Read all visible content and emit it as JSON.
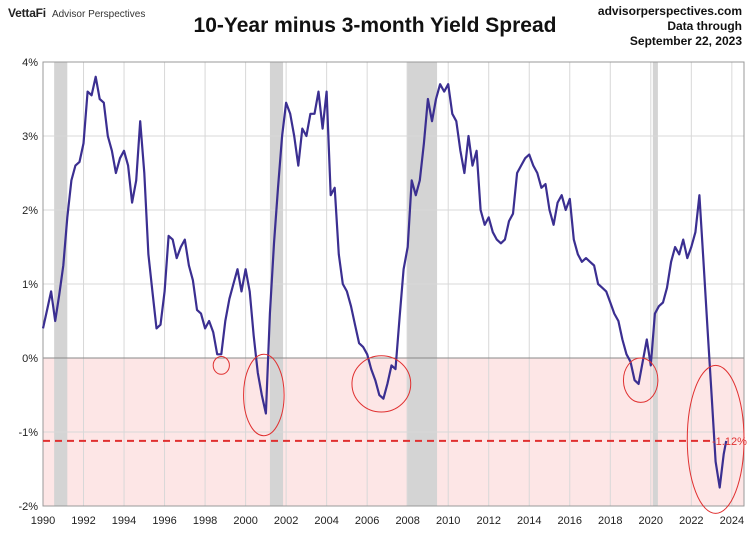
{
  "header": {
    "brand": "VettaFi",
    "brand_sub": "Advisor Perspectives",
    "source_lines": [
      "advisorperspectives.com",
      "Data through",
      "September 22, 2023"
    ]
  },
  "colors": {
    "line": "#3b2f91",
    "recession": "#d4d4d4",
    "negative_zone": "#fde6e6",
    "annotation": "#e03030",
    "grid": "#d8d8d8"
  },
  "chart_data": {
    "type": "line",
    "title": "10-Year minus 3-month Yield Spread",
    "xlim": [
      1990,
      2024.6
    ],
    "ylim": [
      -2,
      4
    ],
    "x_ticks": [
      1990,
      1992,
      1994,
      1996,
      1998,
      2000,
      2002,
      2004,
      2006,
      2008,
      2010,
      2012,
      2014,
      2016,
      2018,
      2020,
      2022,
      2024
    ],
    "y_ticks": [
      {
        "value": 4,
        "label": "4%"
      },
      {
        "value": 3,
        "label": "3%"
      },
      {
        "value": 2,
        "label": "2%"
      },
      {
        "value": 1,
        "label": "1%"
      },
      {
        "value": 0,
        "label": "0%"
      },
      {
        "value": -1,
        "label": "-1%"
      },
      {
        "value": -2,
        "label": "-2%"
      }
    ],
    "recessions": [
      [
        1990.55,
        1991.2
      ],
      [
        2001.2,
        2001.85
      ],
      [
        2007.95,
        2009.45
      ],
      [
        2020.1,
        2020.35
      ]
    ],
    "reference_line": {
      "value": -1.12,
      "label": "-1.12%"
    },
    "inversion_circles": [
      {
        "x": 1998.8,
        "y": -0.1,
        "rx": 0.4,
        "ry": 0.12
      },
      {
        "x": 2000.9,
        "y": -0.5,
        "rx": 1.0,
        "ry": 0.55
      },
      {
        "x": 2006.7,
        "y": -0.35,
        "rx": 1.45,
        "ry": 0.38
      },
      {
        "x": 2019.5,
        "y": -0.3,
        "rx": 0.85,
        "ry": 0.3
      },
      {
        "x": 2023.2,
        "y": -1.1,
        "rx": 1.4,
        "ry": 1.0
      }
    ],
    "series": [
      {
        "x": [
          1990.0,
          1990.2,
          1990.4,
          1990.6,
          1990.8,
          1991.0,
          1991.2,
          1991.4,
          1991.6,
          1991.8,
          1992.0,
          1992.2,
          1992.4,
          1992.6,
          1992.8,
          1993.0,
          1993.2,
          1993.4,
          1993.6,
          1993.8,
          1994.0,
          1994.2,
          1994.4,
          1994.6,
          1994.8,
          1995.0,
          1995.2,
          1995.4,
          1995.6,
          1995.8,
          1996.0,
          1996.2,
          1996.4,
          1996.6,
          1996.8,
          1997.0,
          1997.2,
          1997.4,
          1997.6,
          1997.8,
          1998.0,
          1998.2,
          1998.4,
          1998.6,
          1998.8,
          1999.0,
          1999.2,
          1999.4,
          1999.6,
          1999.8,
          2000.0,
          2000.2,
          2000.4,
          2000.6,
          2000.8,
          2001.0,
          2001.2,
          2001.4,
          2001.6,
          2001.8,
          2002.0,
          2002.2,
          2002.4,
          2002.6,
          2002.8,
          2003.0,
          2003.2,
          2003.4,
          2003.6,
          2003.8,
          2004.0,
          2004.2,
          2004.4,
          2004.6,
          2004.8,
          2005.0,
          2005.2,
          2005.4,
          2005.6,
          2005.8,
          2006.0,
          2006.2,
          2006.4,
          2006.6,
          2006.8,
          2007.0,
          2007.2,
          2007.4,
          2007.6,
          2007.8,
          2008.0,
          2008.2,
          2008.4,
          2008.6,
          2008.8,
          2009.0,
          2009.2,
          2009.4,
          2009.6,
          2009.8,
          2010.0,
          2010.2,
          2010.4,
          2010.6,
          2010.8,
          2011.0,
          2011.2,
          2011.4,
          2011.6,
          2011.8,
          2012.0,
          2012.2,
          2012.4,
          2012.6,
          2012.8,
          2013.0,
          2013.2,
          2013.4,
          2013.6,
          2013.8,
          2014.0,
          2014.2,
          2014.4,
          2014.6,
          2014.8,
          2015.0,
          2015.2,
          2015.4,
          2015.6,
          2015.8,
          2016.0,
          2016.2,
          2016.4,
          2016.6,
          2016.8,
          2017.0,
          2017.2,
          2017.4,
          2017.6,
          2017.8,
          2018.0,
          2018.2,
          2018.4,
          2018.6,
          2018.8,
          2019.0,
          2019.2,
          2019.4,
          2019.6,
          2019.8,
          2020.0,
          2020.2,
          2020.4,
          2020.6,
          2020.8,
          2021.0,
          2021.2,
          2021.4,
          2021.6,
          2021.8,
          2022.0,
          2022.2,
          2022.4,
          2022.6,
          2022.8,
          2023.0,
          2023.2,
          2023.4,
          2023.6,
          2023.72
        ],
        "y": [
          0.4,
          0.65,
          0.9,
          0.5,
          0.85,
          1.25,
          1.9,
          2.4,
          2.6,
          2.65,
          2.9,
          3.6,
          3.55,
          3.8,
          3.5,
          3.45,
          3.0,
          2.8,
          2.5,
          2.7,
          2.8,
          2.6,
          2.1,
          2.4,
          3.2,
          2.5,
          1.4,
          0.9,
          0.4,
          0.45,
          0.9,
          1.65,
          1.6,
          1.35,
          1.5,
          1.6,
          1.25,
          1.05,
          0.65,
          0.6,
          0.4,
          0.5,
          0.35,
          0.05,
          0.05,
          0.5,
          0.8,
          1.0,
          1.2,
          0.9,
          1.2,
          0.9,
          0.3,
          -0.2,
          -0.5,
          -0.75,
          0.6,
          1.55,
          2.3,
          3.0,
          3.45,
          3.3,
          3.0,
          2.6,
          3.1,
          3.0,
          3.3,
          3.3,
          3.6,
          3.1,
          3.6,
          2.2,
          2.3,
          1.4,
          1.0,
          0.9,
          0.7,
          0.45,
          0.2,
          0.15,
          0.05,
          -0.15,
          -0.3,
          -0.5,
          -0.55,
          -0.35,
          -0.1,
          -0.15,
          0.55,
          1.2,
          1.5,
          2.4,
          2.2,
          2.4,
          2.9,
          3.5,
          3.2,
          3.5,
          3.7,
          3.6,
          3.7,
          3.3,
          3.2,
          2.8,
          2.5,
          3.0,
          2.6,
          2.8,
          2.0,
          1.8,
          1.9,
          1.7,
          1.6,
          1.55,
          1.6,
          1.85,
          1.95,
          2.5,
          2.6,
          2.7,
          2.75,
          2.6,
          2.5,
          2.3,
          2.35,
          2.0,
          1.8,
          2.1,
          2.2,
          2.0,
          2.15,
          1.6,
          1.4,
          1.3,
          1.35,
          1.3,
          1.25,
          1.0,
          0.95,
          0.9,
          0.75,
          0.6,
          0.5,
          0.25,
          0.05,
          -0.05,
          -0.3,
          -0.35,
          -0.05,
          0.25,
          -0.1,
          0.6,
          0.7,
          0.75,
          0.95,
          1.3,
          1.5,
          1.4,
          1.6,
          1.35,
          1.5,
          1.7,
          2.2,
          1.3,
          0.4,
          -0.5,
          -1.4,
          -1.75,
          -1.3,
          -1.12
        ]
      }
    ]
  }
}
